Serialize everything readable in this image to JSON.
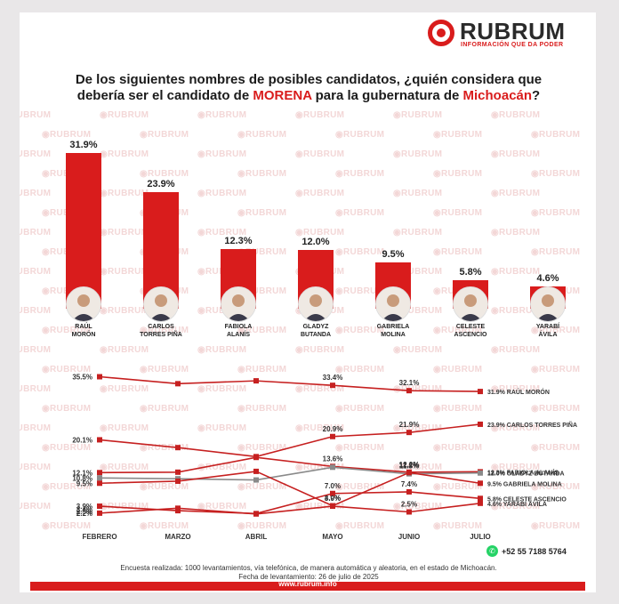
{
  "brand": {
    "name": "RUBRUM",
    "tagline": "INFORMACIÓN QUE DA PODER"
  },
  "watermark": "RUBRUM",
  "title": {
    "line1": "De los siguientes nombres de posibles candidatos, ¿quién considera que",
    "line2_before": "debería ser el candidato de ",
    "line2_party": "MORENA",
    "line2_middle": " para la gubernatura de ",
    "line2_state": "Michoacán",
    "line2_end": "?"
  },
  "chart_data": [
    {
      "type": "bar",
      "categories": [
        "RAÚL MORÓN",
        "CARLOS TORRES PIÑA",
        "FABIOLA ALANÍS",
        "GLADYZ BUTANDA",
        "GABRIELA MOLINA",
        "CELESTE ASCENCIO",
        "YARABÍ ÁVILA"
      ],
      "values": [
        31.9,
        23.9,
        12.3,
        12.0,
        9.5,
        5.8,
        4.6
      ],
      "value_labels": [
        "31.9%",
        "23.9%",
        "12.3%",
        "12.0%",
        "9.5%",
        "5.8%",
        "4.6%"
      ],
      "name_labels": [
        "RAÚL\nMORÓN",
        "CARLOS\nTORRES PIÑA",
        "FABIOLA\nALANÍS",
        "GLADYZ\nBUTANDA",
        "GABRIELA\nMOLINA",
        "CELESTE\nASCENCIO",
        "YARABÍ\nÁVILA"
      ],
      "colors": {
        "bar": "#d91c1c"
      }
    },
    {
      "type": "line",
      "x": [
        "FEBRERO",
        "MARZO",
        "ABRIL",
        "MAYO",
        "JUNIO",
        "JULIO"
      ],
      "series": [
        {
          "name": "RAÚL MORÓN",
          "values": [
            35.5,
            33.8,
            34.5,
            33.4,
            32.1,
            31.9
          ],
          "labels": [
            "35.5%",
            null,
            null,
            "33.4%",
            "32.1%",
            "31.9%"
          ],
          "end_label": "31.9% RAÚL MORÓN",
          "color": "#c62020"
        },
        {
          "name": "CARLOS TORRES PIÑA",
          "values": [
            20.1,
            18.2,
            16.0,
            20.9,
            21.9,
            23.9
          ],
          "labels": [
            "20.1%",
            null,
            null,
            "20.9%",
            "21.9%",
            "23.9%"
          ],
          "end_label": "23.9% CARLOS TORRES PIÑA",
          "color": "#c62020"
        },
        {
          "name": "FABIOLA ALANÍS",
          "values": [
            12.1,
            12.2,
            15.8,
            13.6,
            12.2,
            12.3
          ],
          "labels": [
            "12.1%",
            null,
            null,
            "13.6%",
            "12.2%",
            "12.3%"
          ],
          "end_label": "12.3% FABIOLA ALANÍS",
          "color": "#c62020"
        },
        {
          "name": "GLADYZ BUTANDA",
          "values": [
            10.8,
            10.6,
            10.3,
            13.4,
            11.8,
            12.0
          ],
          "labels": [
            "10.8%",
            null,
            null,
            null,
            "11.8%",
            "12.0%"
          ],
          "end_label": "12.0% GLADYZ BUTANDA",
          "color": "#8a8a8a"
        },
        {
          "name": "GABRIELA MOLINA",
          "values": [
            9.5,
            10.0,
            12.4,
            4.0,
            12.1,
            9.5
          ],
          "labels": [
            "9.5%",
            null,
            null,
            "4.0%",
            "12.1%",
            "9.5%"
          ],
          "end_label": "9.5% GABRIELA MOLINA",
          "color": "#c62020"
        },
        {
          "name": "CELESTE ASCENCIO",
          "values": [
            3.9,
            2.8,
            2.1,
            7.0,
            7.4,
            5.8
          ],
          "labels": [
            "3.9%",
            null,
            null,
            "7.0%",
            "7.4%",
            "5.8%"
          ],
          "end_label": "5.8% CELESTE ASCENCIO",
          "color": "#c62020"
        },
        {
          "name": "YARABÍ ÁVILA",
          "values": [
            2.2,
            3.4,
            2.0,
            3.9,
            2.5,
            4.6
          ],
          "labels": [
            "2.2%",
            null,
            null,
            "3.9%",
            "2.5%",
            "4.6%"
          ],
          "end_label": "4.6% YARABÍ ÁVILA",
          "color": "#c62020"
        }
      ],
      "extra_labels": [
        "3.4%",
        "2.5%"
      ],
      "ylim": [
        0,
        38
      ]
    }
  ],
  "contact": {
    "phone": "+52 55 7188 5764",
    "icon": "whatsapp-icon"
  },
  "footer": {
    "line1": "Encuesta realizada: 1000 levantamientos, vía telefónica, de manera automática y aleatoria, en el estado de Michoacán.",
    "line2": "Fecha de levantamiento: 26 de julio de 2025",
    "website": "www.rubrum.info"
  }
}
